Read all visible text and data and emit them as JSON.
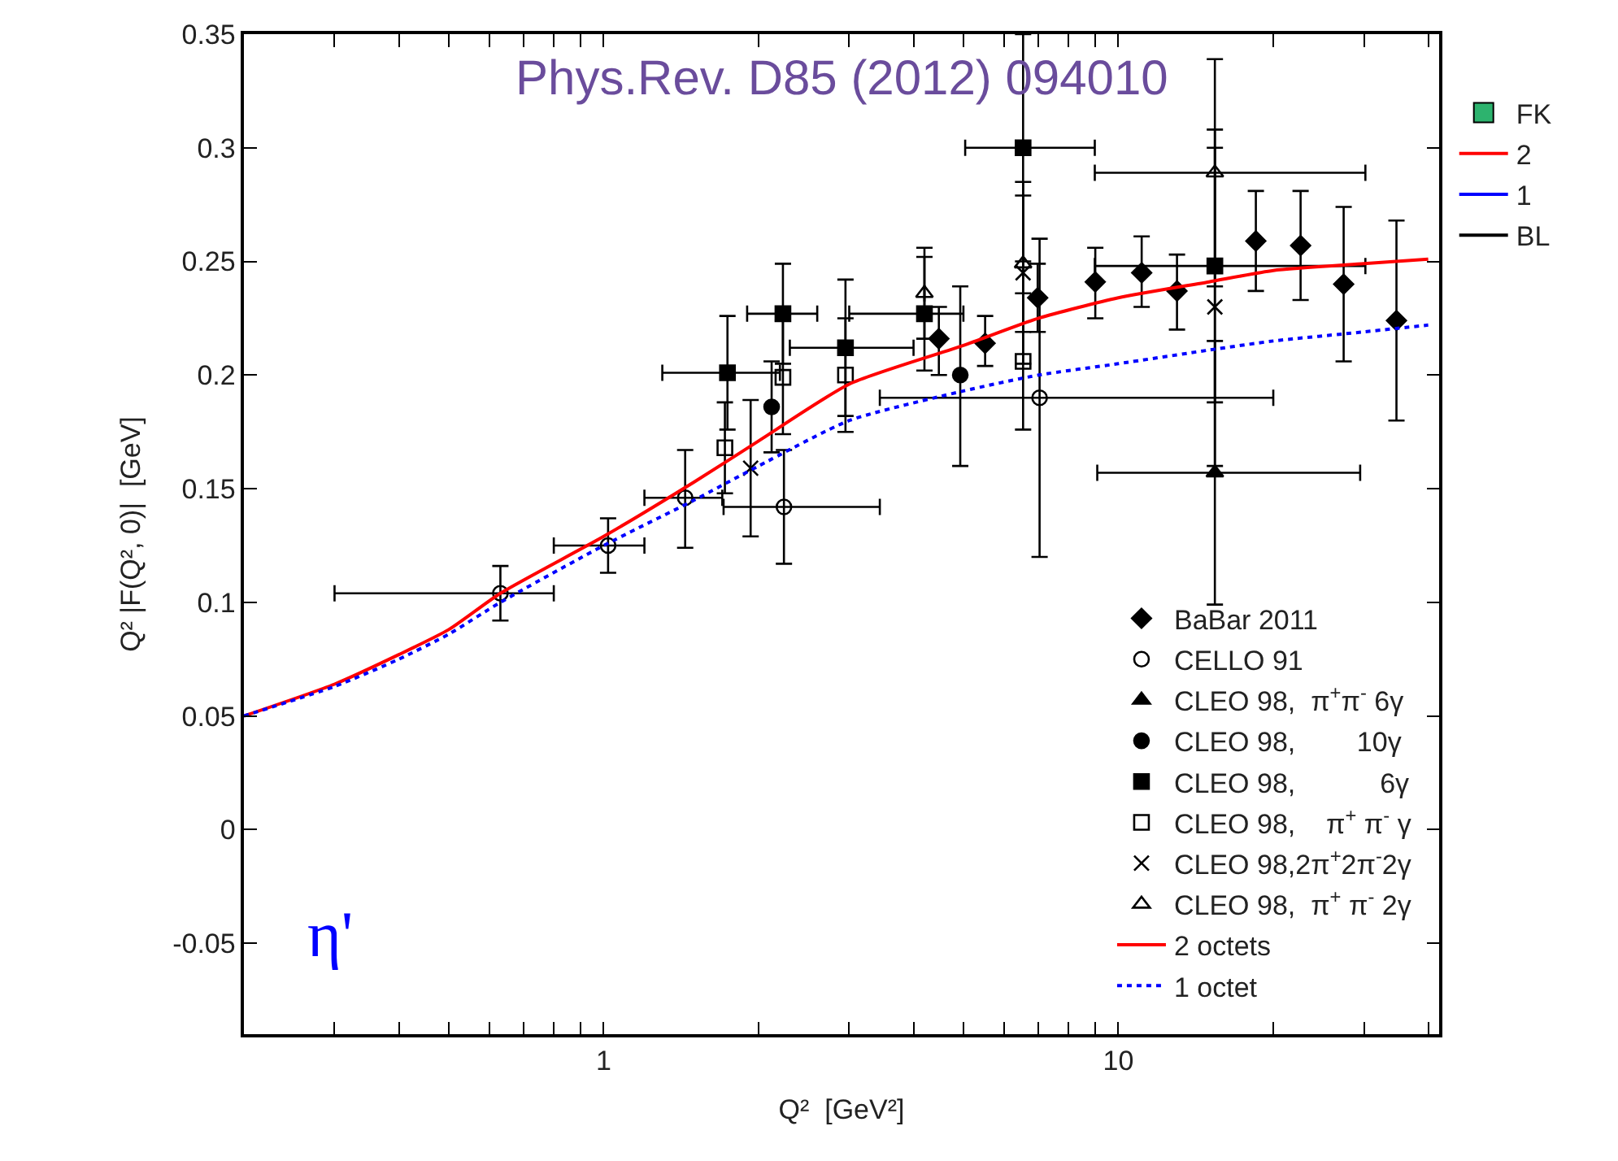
{
  "chart_data": {
    "type": "scatter",
    "xlabel": "Q²  [GeV²]",
    "ylabel": "Q² |F(Q², 0)|  [GeV]",
    "log": "x",
    "legend": "bottom right",
    "xlim": [
      0.2,
      42
    ],
    "ylim": [
      -0.09,
      0.35
    ],
    "xticks": [
      {
        "value": 0.2,
        "label": null
      },
      {
        "value": 0.3,
        "label": null
      },
      {
        "value": 0.4,
        "label": null
      },
      {
        "value": 0.5,
        "label": null
      },
      {
        "value": 0.6,
        "label": null
      },
      {
        "value": 0.7,
        "label": null
      },
      {
        "value": 0.8,
        "label": null
      },
      {
        "value": 0.9,
        "label": null
      },
      1,
      {
        "value": 2,
        "label": null
      },
      {
        "value": 3,
        "label": null
      },
      {
        "value": 4,
        "label": null
      },
      {
        "value": 5,
        "label": null
      },
      {
        "value": 6,
        "label": null
      },
      {
        "value": 7,
        "label": null
      },
      {
        "value": 8,
        "label": null
      },
      {
        "value": 9,
        "label": null
      },
      10,
      {
        "value": 20,
        "label": null
      },
      {
        "value": 30,
        "label": null
      },
      {
        "value": 40,
        "label": null
      }
    ],
    "yticks": [
      -0.05,
      0,
      0.05,
      0.1,
      0.15,
      0.2,
      0.25,
      0.3,
      0.35
    ],
    "annotations": [
      "Phys.Rev. D85 (2012) 094010",
      "η'"
    ],
    "series": [
      {
        "name": "BaBar 2011",
        "type": "scatter",
        "marker": "diamond",
        "color": "#000000",
        "x": [
          4.48,
          5.51,
          6.97,
          9.02,
          11.1,
          13.0,
          18.5,
          22.6,
          27.4,
          34.7
        ],
        "values": [
          0.216,
          0.214,
          0.234,
          0.241,
          0.245,
          0.237,
          0.259,
          0.257,
          0.24,
          0.224
        ],
        "errors": [
          [
            0.2,
            0.23
          ],
          [
            0.204,
            0.226
          ],
          [
            0.219,
            0.249
          ],
          [
            0.225,
            0.256
          ],
          [
            0.23,
            0.261
          ],
          [
            0.22,
            0.253
          ],
          [
            0.237,
            0.281
          ],
          [
            0.233,
            0.281
          ],
          [
            0.206,
            0.274
          ],
          [
            0.18,
            0.268
          ]
        ]
      },
      {
        "name": "CELLO 91",
        "type": "scatter",
        "marker": "circle-open",
        "color": "#000000",
        "x": [
          0.63,
          1.02,
          1.44,
          2.24,
          7.03
        ],
        "values": [
          0.104,
          0.125,
          0.146,
          0.142,
          0.19
        ],
        "errors": [
          0.012,
          0.012,
          [
            0.124,
            0.167
          ],
          0.025,
          0.07
        ],
        "xerrors": [
          [
            0.3,
            0.8
          ],
          [
            0.8,
            1.2
          ],
          [
            1.2,
            1.7
          ],
          [
            1.71,
            3.44
          ],
          [
            3.44,
            20
          ]
        ]
      },
      {
        "name": "CLEO 98,  π$^{+}$π$^{-}$ 6γ",
        "type": "scatter",
        "marker": "triangle-up",
        "color": "#000000",
        "x": [
          15.4
        ],
        "values": [
          0.157
        ],
        "errors": [
          0.058
        ],
        "xerrors": [
          [
            9.1,
            29.5
          ]
        ]
      },
      {
        "name": "CLEO 98,        10γ",
        "type": "scatter",
        "marker": "circle",
        "color": "#000000",
        "x": [
          2.12,
          4.93
        ],
        "values": [
          0.186,
          0.2
        ],
        "errors": [
          0.02,
          [
            0.16,
            0.239
          ]
        ]
      },
      {
        "name": "CLEO 98,           6γ",
        "type": "scatter",
        "marker": "square",
        "color": "#000000",
        "x": [
          1.74,
          2.23,
          2.95,
          4.2,
          6.53,
          15.4
        ],
        "values": [
          0.201,
          0.227,
          0.212,
          0.227,
          0.3,
          0.248
        ],
        "errors": [
          0.025,
          0.022,
          0.03,
          0.025,
          0.05,
          0.06
        ],
        "xerrors": [
          [
            1.3,
            2.2
          ],
          [
            1.9,
            2.6
          ],
          [
            2.3,
            4.0
          ],
          [
            3.0,
            5.0
          ],
          [
            5.04,
            9.0
          ],
          [
            9.0,
            30.2
          ]
        ]
      },
      {
        "name": "CLEO 98,    π$^{+}$ π$^{-}$ γ",
        "type": "scatter",
        "marker": "square-open",
        "color": "#000000",
        "x": [
          1.72,
          2.23,
          2.95,
          6.53
        ],
        "values": [
          0.168,
          0.199,
          0.2,
          0.206
        ],
        "errors": [
          0.02,
          0.025,
          0.025,
          0.03
        ]
      },
      {
        "name": "CLEO 98,2π$^{+}$2π$^{-}$2γ",
        "type": "scatter",
        "marker": "cross",
        "color": "#000000",
        "x": [
          1.93,
          6.53,
          15.4
        ],
        "values": [
          0.159,
          0.245,
          0.23
        ],
        "errors": [
          0.03,
          0.04,
          0.07
        ]
      },
      {
        "name": "CLEO 98,  π$^{+}$ π$^{-}$ 2γ",
        "type": "scatter",
        "marker": "triangle-up-open",
        "color": "#000000",
        "x": [
          4.2,
          6.53,
          15.4
        ],
        "values": [
          0.236,
          0.249,
          0.289
        ],
        "errors": [
          0.02,
          0.03,
          0.05
        ],
        "xerrors": [
          null,
          null,
          [
            9.0,
            30.2
          ]
        ]
      },
      {
        "name": "2 octets",
        "type": "line",
        "line_style": "solid",
        "marker": "none",
        "color": "#ff0000",
        "x": [
          0.2,
          0.3,
          0.4,
          0.5,
          0.63,
          1,
          1.5,
          2,
          3,
          5,
          7,
          10,
          15,
          20,
          30,
          40
        ],
        "values": [
          0.05,
          0.064,
          0.077,
          0.088,
          0.104,
          0.129,
          0.153,
          0.171,
          0.196,
          0.213,
          0.225,
          0.234,
          0.241,
          0.246,
          0.249,
          0.251
        ]
      },
      {
        "name": "1 octet",
        "type": "line",
        "line_style": "dotted",
        "marker": "none",
        "color": "#0000ff",
        "x": [
          0.2,
          0.3,
          0.4,
          0.5,
          0.63,
          1,
          1.5,
          2,
          3,
          5,
          7,
          10,
          15,
          20,
          30,
          40
        ],
        "values": [
          0.05,
          0.063,
          0.075,
          0.086,
          0.1,
          0.125,
          0.145,
          0.16,
          0.18,
          0.193,
          0.2,
          0.205,
          0.211,
          0.215,
          0.219,
          0.222
        ]
      },
      {
        "name": "FK",
        "type": "bar",
        "color": "#2db36e",
        "values": [
          null
        ]
      },
      {
        "name": "2",
        "type": "line",
        "line_style": "solid",
        "marker": "none",
        "color": "#ff0000",
        "values": [
          null
        ]
      },
      {
        "name": "1",
        "type": "line",
        "line_style": "solid",
        "marker": "none",
        "color": "#0000ff",
        "values": [
          null
        ]
      },
      {
        "name": "BL",
        "type": "line",
        "line_style": "solid",
        "marker": "none",
        "color": "#000000",
        "values": [
          null
        ]
      }
    ]
  }
}
